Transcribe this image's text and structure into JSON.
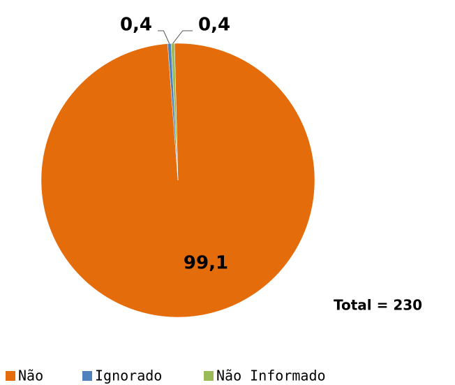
{
  "chart_data": {
    "type": "pie",
    "categories": [
      "Não",
      "Ignorado",
      "Não Informado"
    ],
    "values": [
      99.1,
      0.4,
      0.4
    ],
    "value_labels": [
      "99,1",
      "0,4",
      "0,4"
    ],
    "colors": [
      "#e46c0a",
      "#4f81bd",
      "#9bbb59"
    ],
    "annotation": "Total = 230",
    "legend": "bottom"
  }
}
